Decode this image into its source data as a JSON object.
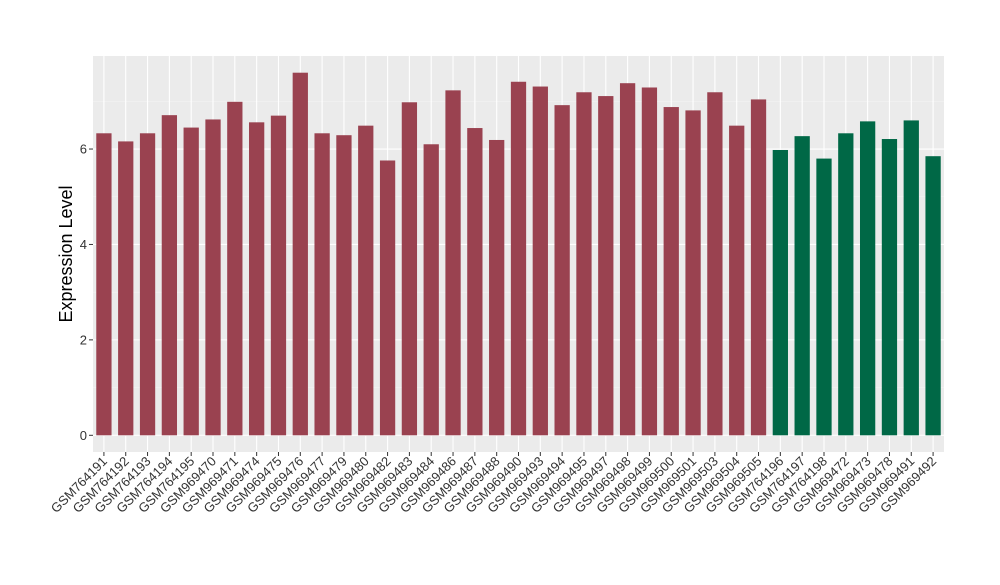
{
  "colors": {
    "panel_background": "#EBEBEB",
    "grid_major": "#FFFFFF",
    "grid_minor": "#F4F4F4",
    "group_a": "#9A4250",
    "group_b": "#006846"
  },
  "chart_data": {
    "type": "bar",
    "title": "",
    "xlabel": "",
    "ylabel": "Expression Level",
    "ylim": [
      -0.35,
      7.95
    ],
    "yticks": [
      0,
      2,
      4,
      6
    ],
    "grid": true,
    "legend": "none",
    "categories": [
      "GSM764191",
      "GSM764192",
      "GSM764193",
      "GSM764194",
      "GSM764195",
      "GSM969470",
      "GSM969471",
      "GSM969474",
      "GSM969475",
      "GSM969476",
      "GSM969477",
      "GSM969479",
      "GSM969480",
      "GSM969482",
      "GSM969483",
      "GSM969484",
      "GSM969486",
      "GSM969487",
      "GSM969488",
      "GSM969490",
      "GSM969493",
      "GSM969494",
      "GSM969495",
      "GSM969497",
      "GSM969498",
      "GSM969499",
      "GSM969500",
      "GSM969501",
      "GSM969503",
      "GSM969504",
      "GSM969505",
      "GSM764196",
      "GSM764197",
      "GSM764198",
      "GSM969472",
      "GSM969473",
      "GSM969478",
      "GSM969491",
      "GSM969492"
    ],
    "values": [
      6.33,
      6.16,
      6.33,
      6.71,
      6.45,
      6.62,
      6.99,
      6.56,
      6.7,
      7.6,
      6.33,
      6.29,
      6.49,
      5.76,
      6.98,
      6.1,
      7.23,
      6.44,
      6.19,
      7.41,
      7.31,
      6.92,
      7.19,
      7.11,
      7.38,
      7.29,
      6.88,
      6.81,
      7.19,
      6.49,
      7.04,
      5.98,
      6.27,
      5.8,
      6.33,
      6.58,
      6.21,
      6.6,
      5.85
    ],
    "groups": [
      "a",
      "a",
      "a",
      "a",
      "a",
      "a",
      "a",
      "a",
      "a",
      "a",
      "a",
      "a",
      "a",
      "a",
      "a",
      "a",
      "a",
      "a",
      "a",
      "a",
      "a",
      "a",
      "a",
      "a",
      "a",
      "a",
      "a",
      "a",
      "a",
      "a",
      "a",
      "b",
      "b",
      "b",
      "b",
      "b",
      "b",
      "b",
      "b"
    ]
  }
}
